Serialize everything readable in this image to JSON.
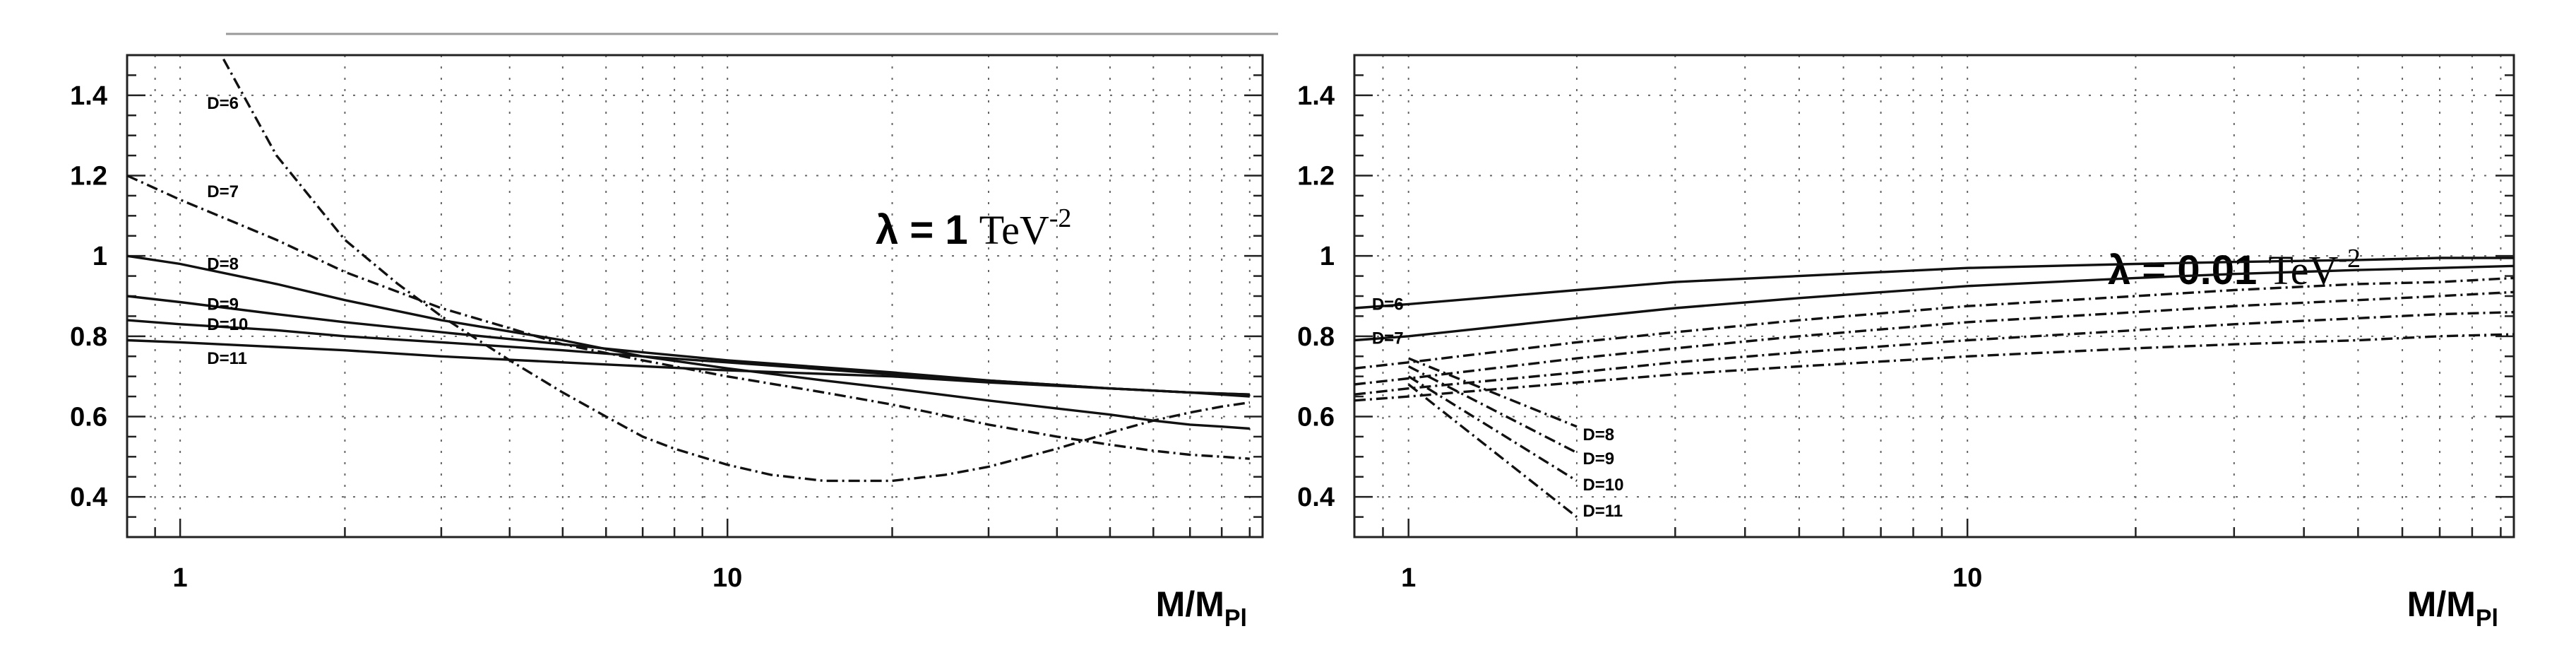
{
  "colors": {
    "background": "#ffffff",
    "curves": "#111111",
    "grid": "#666666"
  },
  "chart_data": [
    {
      "type": "line",
      "title": "",
      "annotation": {
        "lambda_label": "λ = 1",
        "unit": "TeV",
        "unit_exponent": "-2"
      },
      "xlabel": {
        "main": "M/M",
        "subscript": "Pl"
      },
      "ylabel": "",
      "x_scale": "log",
      "xlim": [
        0.8,
        95
      ],
      "ylim": [
        0.3,
        1.5
      ],
      "grid": true,
      "x_ticks": [
        1,
        10
      ],
      "x_tick_labels": [
        "1",
        "10"
      ],
      "y_ticks": [
        0.4,
        0.6,
        0.8,
        1,
        1.2,
        1.4
      ],
      "y_tick_labels": [
        "0.4",
        "0.6",
        "0.8",
        "1",
        "1.2",
        "1.4"
      ],
      "series": [
        {
          "name": "D=6",
          "style": "dash-dot",
          "label_at": [
            1.12,
            1.38
          ],
          "x": [
            1.2,
            1.5,
            2,
            2.5,
            3,
            4,
            5,
            6,
            7,
            8,
            10,
            12,
            15,
            20,
            25,
            30,
            40,
            50,
            60,
            70,
            80,
            90
          ],
          "y": [
            1.49,
            1.25,
            1.04,
            0.93,
            0.85,
            0.74,
            0.66,
            0.6,
            0.55,
            0.52,
            0.48,
            0.455,
            0.44,
            0.44,
            0.455,
            0.475,
            0.52,
            0.56,
            0.59,
            0.61,
            0.625,
            0.635
          ]
        },
        {
          "name": "D=7",
          "style": "dash-dot",
          "label_at": [
            1.12,
            1.16
          ],
          "x": [
            0.8,
            1,
            1.5,
            2,
            3,
            4,
            5,
            7,
            10,
            15,
            20,
            30,
            40,
            50,
            60,
            70,
            80,
            90
          ],
          "y": [
            1.2,
            1.14,
            1.04,
            0.96,
            0.87,
            0.82,
            0.78,
            0.74,
            0.7,
            0.66,
            0.63,
            0.58,
            0.55,
            0.53,
            0.515,
            0.505,
            0.5,
            0.495
          ]
        },
        {
          "name": "D=8",
          "style": "solid",
          "label_at": [
            1.12,
            0.98
          ],
          "x": [
            0.8,
            1,
            1.5,
            2,
            3,
            5,
            7,
            10,
            15,
            20,
            30,
            40,
            50,
            60,
            70,
            80,
            90
          ],
          "y": [
            1.0,
            0.98,
            0.93,
            0.89,
            0.84,
            0.79,
            0.75,
            0.72,
            0.69,
            0.67,
            0.64,
            0.62,
            0.605,
            0.59,
            0.58,
            0.575,
            0.57
          ]
        },
        {
          "name": "D=9",
          "style": "solid",
          "label_at": [
            1.12,
            0.88
          ],
          "x": [
            0.8,
            1,
            1.5,
            2,
            3,
            5,
            7,
            10,
            20,
            30,
            50,
            70,
            90
          ],
          "y": [
            0.9,
            0.885,
            0.855,
            0.835,
            0.81,
            0.78,
            0.76,
            0.74,
            0.71,
            0.69,
            0.67,
            0.66,
            0.65
          ]
        },
        {
          "name": "D=10",
          "style": "solid",
          "label_at": [
            1.12,
            0.83
          ],
          "x": [
            0.8,
            1,
            1.5,
            2,
            3,
            5,
            7,
            10,
            20,
            30,
            50,
            70,
            90
          ],
          "y": [
            0.84,
            0.83,
            0.815,
            0.8,
            0.785,
            0.765,
            0.75,
            0.735,
            0.705,
            0.69,
            0.67,
            0.66,
            0.655
          ]
        },
        {
          "name": "D=11",
          "style": "solid",
          "label_at": [
            1.12,
            0.745
          ],
          "x": [
            0.8,
            1,
            2,
            3,
            5,
            10,
            20,
            30,
            50,
            70,
            90
          ],
          "y": [
            0.79,
            0.785,
            0.765,
            0.75,
            0.735,
            0.715,
            0.7,
            0.685,
            0.67,
            0.66,
            0.655
          ]
        }
      ]
    },
    {
      "type": "line",
      "title": "",
      "annotation": {
        "lambda_label": "λ = 0.01",
        "unit": "TeV",
        "unit_exponent": "-2"
      },
      "xlabel": {
        "main": "M/M",
        "subscript": "Pl"
      },
      "ylabel": "",
      "x_scale": "log",
      "xlim": [
        0.8,
        95
      ],
      "ylim": [
        0.3,
        1.5
      ],
      "grid": true,
      "x_ticks": [
        1,
        10
      ],
      "x_tick_labels": [
        "1",
        "10"
      ],
      "y_ticks": [
        0.4,
        0.6,
        0.8,
        1,
        1.2,
        1.4
      ],
      "y_tick_labels": [
        "0.4",
        "0.6",
        "0.8",
        "1",
        "1.2",
        "1.4"
      ],
      "series": [
        {
          "name": "D=6",
          "style": "solid",
          "label_at": [
            0.86,
            0.88
          ],
          "x": [
            0.8,
            1,
            2,
            3,
            5,
            10,
            20,
            30,
            50,
            70,
            95
          ],
          "y": [
            0.87,
            0.88,
            0.915,
            0.935,
            0.95,
            0.97,
            0.98,
            0.985,
            0.99,
            0.995,
            0.995
          ]
        },
        {
          "name": "D=7",
          "style": "solid",
          "label_at": [
            0.86,
            0.795
          ],
          "x": [
            0.8,
            1,
            2,
            3,
            5,
            10,
            20,
            30,
            50,
            70,
            95
          ],
          "y": [
            0.79,
            0.8,
            0.845,
            0.87,
            0.895,
            0.925,
            0.945,
            0.955,
            0.965,
            0.97,
            0.975
          ]
        },
        {
          "name": "D=8",
          "style": "dash-dot",
          "label_at": [
            2.05,
            0.555
          ],
          "x": [
            0.8,
            1,
            2,
            3,
            5,
            10,
            20,
            30,
            50,
            70,
            95
          ],
          "y": [
            0.72,
            0.735,
            0.785,
            0.81,
            0.84,
            0.875,
            0.9,
            0.915,
            0.93,
            0.935,
            0.945
          ]
        },
        {
          "name": "D=9",
          "style": "dash-dot",
          "label_at": [
            2.05,
            0.495
          ],
          "x": [
            0.8,
            1,
            2,
            3,
            5,
            10,
            20,
            30,
            50,
            70,
            95
          ],
          "y": [
            0.68,
            0.695,
            0.745,
            0.77,
            0.8,
            0.835,
            0.86,
            0.875,
            0.89,
            0.9,
            0.91
          ]
        },
        {
          "name": "D=10",
          "style": "dash-dot",
          "label_at": [
            2.05,
            0.43
          ],
          "x": [
            0.8,
            1,
            2,
            3,
            5,
            10,
            20,
            30,
            50,
            70,
            95
          ],
          "y": [
            0.655,
            0.67,
            0.71,
            0.735,
            0.76,
            0.79,
            0.815,
            0.83,
            0.845,
            0.855,
            0.86
          ]
        },
        {
          "name": "D=11",
          "style": "dash-dot",
          "label_at": [
            2.05,
            0.365
          ],
          "x": [
            0.8,
            1,
            2,
            3,
            5,
            10,
            20,
            30,
            50,
            70,
            95
          ],
          "y": [
            0.64,
            0.65,
            0.685,
            0.705,
            0.725,
            0.75,
            0.77,
            0.78,
            0.79,
            0.8,
            0.805
          ]
        },
        {
          "name": "",
          "style": "dash-dot",
          "x": [
            1,
            2
          ],
          "y": [
            0.745,
            0.575
          ]
        },
        {
          "name": "",
          "style": "dash-dot",
          "x": [
            1,
            2
          ],
          "y": [
            0.725,
            0.51
          ]
        },
        {
          "name": "",
          "style": "dash-dot",
          "x": [
            1,
            2
          ],
          "y": [
            0.7,
            0.44
          ]
        },
        {
          "name": "",
          "style": "dash-dot",
          "x": [
            1,
            2
          ],
          "y": [
            0.68,
            0.35
          ]
        }
      ]
    }
  ]
}
